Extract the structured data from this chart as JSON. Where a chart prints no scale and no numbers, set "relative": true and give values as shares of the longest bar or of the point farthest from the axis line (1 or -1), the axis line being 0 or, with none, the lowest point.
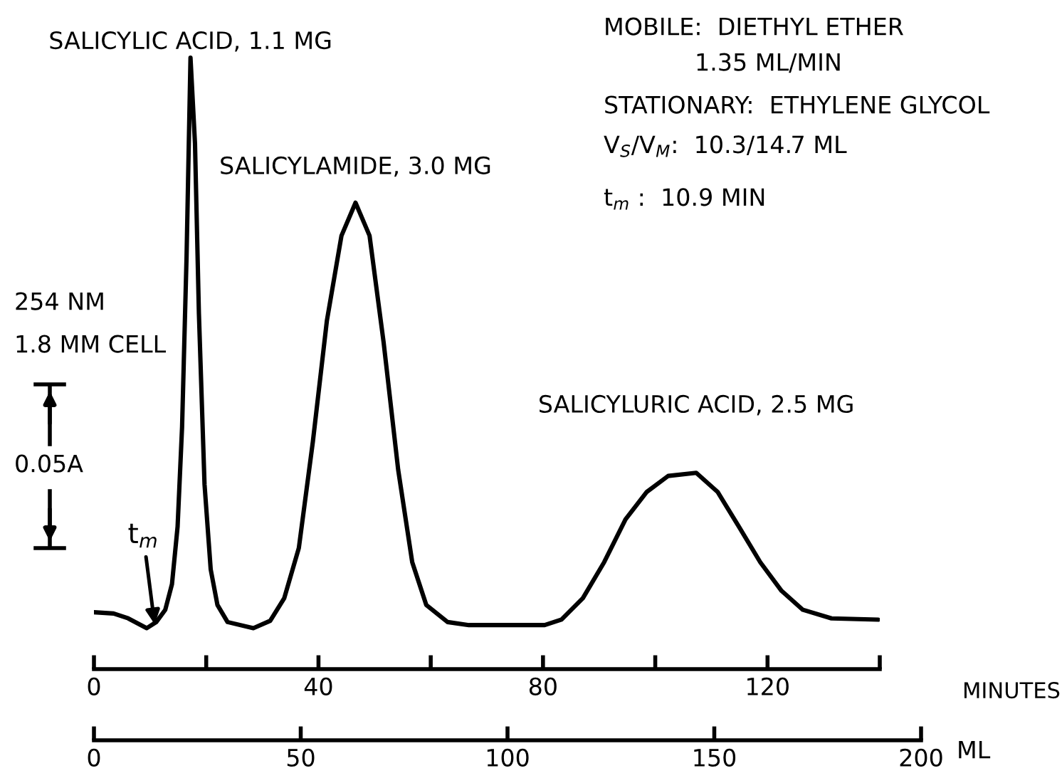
{
  "chart_data": {
    "type": "line",
    "relative": true,
    "x": [
      0,
      3.5,
      6.1,
      9.4,
      11.1,
      12.7,
      13.9,
      14.9,
      15.7,
      16.5,
      17.2,
      18.0,
      18.7,
      19.7,
      20.8,
      22.0,
      23.8,
      28.4,
      31.4,
      33.9,
      36.5,
      39.0,
      41.5,
      44.1,
      46.6,
      49.1,
      51.6,
      54.2,
      56.7,
      59.2,
      63.0,
      66.8,
      80.3,
      83.3,
      87.1,
      90.9,
      94.7,
      98.5,
      102.3,
      107.3,
      111.1,
      114.9,
      118.7,
      122.5,
      126.3,
      131.4,
      139.7
    ],
    "series": [
      {
        "color": "#000000",
        "values": [
          0.093,
          0.091,
          0.083,
          0.067,
          0.077,
          0.097,
          0.139,
          0.233,
          0.396,
          0.675,
          1,
          0.86,
          0.581,
          0.302,
          0.163,
          0.105,
          0.077,
          0.067,
          0.079,
          0.116,
          0.198,
          0.372,
          0.57,
          0.709,
          0.763,
          0.709,
          0.535,
          0.326,
          0.175,
          0.105,
          0.077,
          0.072,
          0.072,
          0.081,
          0.116,
          0.175,
          0.245,
          0.29,
          0.316,
          0.321,
          0.29,
          0.233,
          0.175,
          0.128,
          0.097,
          0.083,
          0.081
        ]
      }
    ],
    "xlim": [
      0,
      140
    ],
    "xticks": [
      0,
      {
        "value": 20,
        "label": null
      },
      40,
      {
        "value": 60,
        "label": null
      },
      80,
      {
        "value": 100,
        "label": null
      },
      120,
      {
        "value": 140,
        "label": null
      }
    ],
    "xlabel": "MINUTES",
    "x2lim": [
      0,
      200
    ],
    "x2ticks": [
      0,
      50,
      100,
      150,
      200
    ],
    "x2label": "ML",
    "grid": false,
    "marker": "none",
    "line_style": "solid",
    "annotations": [
      {
        "text": "SALICYLIC ACID, 1.1 MG",
        "x": 17.2,
        "y": 1
      },
      {
        "text": "SALICYLAMIDE, 3.0 MG",
        "x": 46.6,
        "y": 0.763
      },
      {
        "text": "SALICYLURIC ACID, 2.5 MG",
        "x": 107.3,
        "y": 0.321
      },
      {
        "text": "t$_{m}$",
        "x": 10.9,
        "y": 0.067
      },
      "MOBILE:  DIETHYL ETHER",
      "1.35 ML/MIN",
      "STATIONARY:  ETHYLENE GLYCOL",
      "V$_{S}$/V$_{M}$:  10.3/14.7 ML",
      "t$_{m}$ :  10.9 MIN",
      "254 NM",
      "1.8 MM CELL",
      "0.05A"
    ]
  }
}
